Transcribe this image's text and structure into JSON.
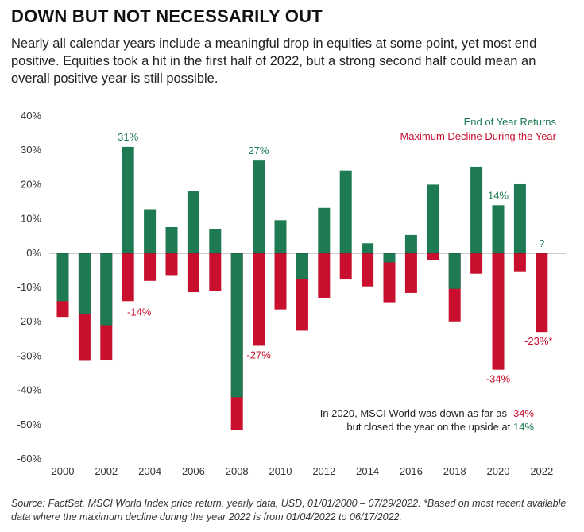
{
  "header": {
    "title": "DOWN BUT NOT NECESSARILY OUT",
    "subtitle": "Nearly all calendar years include a meaningful drop in equities at some point, yet most end positive. Equities took a hit in the first half of 2022, but a strong second half could mean an overall positive year is still possible."
  },
  "colors": {
    "green": "#1d7a52",
    "red": "#c8102e"
  },
  "chart_data": {
    "type": "bar",
    "x": [
      "2000",
      "2001",
      "2002",
      "2003",
      "2004",
      "2005",
      "2006",
      "2007",
      "2008",
      "2009",
      "2010",
      "2011",
      "2012",
      "2013",
      "2014",
      "2015",
      "2016",
      "2017",
      "2018",
      "2019",
      "2020",
      "2021",
      "2022"
    ],
    "x_tick_labels": [
      "2000",
      "2002",
      "2004",
      "2006",
      "2008",
      "2010",
      "2012",
      "2014",
      "2016",
      "2018",
      "2020",
      "2022"
    ],
    "y_tick_labels": [
      "40%",
      "30%",
      "20%",
      "10%",
      "0%",
      "-10%",
      "-20%",
      "-30%",
      "-40%",
      "-50%",
      "-60%"
    ],
    "ylim": [
      -60,
      40
    ],
    "series": [
      {
        "name": "End of Year Returns",
        "color": "#1d7a52",
        "values": [
          -14,
          -17.8,
          -21,
          31,
          12.8,
          7.6,
          18,
          7.1,
          -42,
          27,
          9.6,
          -7.6,
          13.2,
          24.1,
          2.9,
          -2.7,
          5.3,
          20,
          -10.4,
          25.2,
          14,
          20.1,
          null
        ]
      },
      {
        "name": "Maximum Decline During the Year",
        "color": "#c8102e",
        "values": [
          -18.6,
          -31.4,
          -31.3,
          -14,
          -8.1,
          -6.4,
          -11.4,
          -11,
          -51.5,
          -27,
          -16.4,
          -22.6,
          -13,
          -7.7,
          -9.7,
          -14.3,
          -11.6,
          -2,
          -19.9,
          -6,
          -34,
          -5.3,
          -23
        ]
      }
    ],
    "annotations": [
      {
        "year": "2003",
        "series": "green",
        "text": "31%"
      },
      {
        "year": "2003",
        "series": "red",
        "text": "-14%"
      },
      {
        "year": "2009",
        "series": "green",
        "text": "27%"
      },
      {
        "year": "2009",
        "series": "red",
        "text": "-27%"
      },
      {
        "year": "2020",
        "series": "green",
        "text": "14%"
      },
      {
        "year": "2020",
        "series": "red",
        "text": "-34%"
      },
      {
        "year": "2022",
        "series": "green",
        "text": "?"
      },
      {
        "year": "2022",
        "series": "red",
        "text": "-23%*"
      }
    ],
    "legend_position": "top-right",
    "note": {
      "line1_prefix": "In 2020, MSCI World was down as far as ",
      "line1_value": "-34%",
      "line2_prefix": "but closed the year on the upside at ",
      "line2_value": "14%"
    }
  },
  "footer": {
    "source": "Source: FactSet. MSCI World Index price return, yearly data, USD, 01/01/2000 – 07/29/2022. *Based on most recent available data where the maximum decline during the year 2022 is from 01/04/2022 to 06/17/2022."
  }
}
